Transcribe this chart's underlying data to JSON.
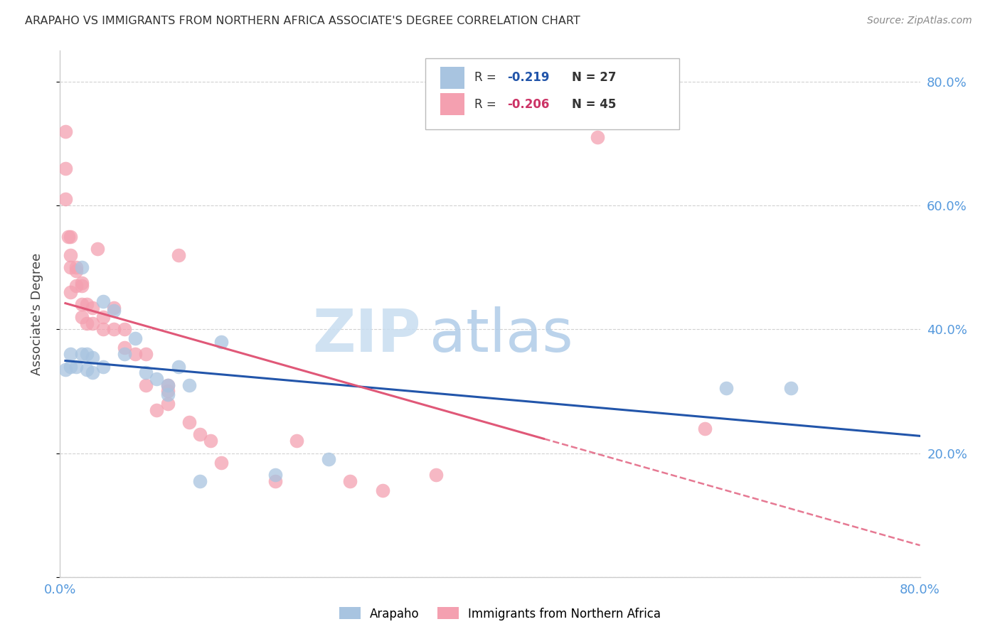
{
  "title": "ARAPAHO VS IMMIGRANTS FROM NORTHERN AFRICA ASSOCIATE'S DEGREE CORRELATION CHART",
  "source": "Source: ZipAtlas.com",
  "ylabel": "Associate's Degree",
  "xlim": [
    0.0,
    0.8
  ],
  "ylim": [
    0.0,
    0.85
  ],
  "yticks": [
    0.0,
    0.2,
    0.4,
    0.6,
    0.8
  ],
  "xticks": [
    0.0,
    0.1,
    0.2,
    0.3,
    0.4,
    0.5,
    0.6,
    0.7,
    0.8
  ],
  "blue_color": "#a8c4e0",
  "pink_color": "#f4a0b0",
  "line_blue": "#2255aa",
  "line_pink": "#e05878",
  "arapaho_x": [
    0.005,
    0.01,
    0.01,
    0.015,
    0.02,
    0.02,
    0.025,
    0.025,
    0.03,
    0.03,
    0.04,
    0.04,
    0.05,
    0.06,
    0.07,
    0.08,
    0.09,
    0.1,
    0.1,
    0.11,
    0.12,
    0.13,
    0.15,
    0.2,
    0.25,
    0.62,
    0.68
  ],
  "arapaho_y": [
    0.335,
    0.34,
    0.36,
    0.34,
    0.5,
    0.36,
    0.335,
    0.36,
    0.355,
    0.33,
    0.445,
    0.34,
    0.43,
    0.36,
    0.385,
    0.33,
    0.32,
    0.31,
    0.295,
    0.34,
    0.31,
    0.155,
    0.38,
    0.165,
    0.19,
    0.305,
    0.305
  ],
  "immigrants_x": [
    0.005,
    0.005,
    0.005,
    0.008,
    0.01,
    0.01,
    0.01,
    0.01,
    0.015,
    0.015,
    0.015,
    0.02,
    0.02,
    0.02,
    0.02,
    0.025,
    0.025,
    0.03,
    0.03,
    0.035,
    0.04,
    0.04,
    0.05,
    0.05,
    0.06,
    0.06,
    0.07,
    0.08,
    0.08,
    0.09,
    0.1,
    0.1,
    0.1,
    0.11,
    0.12,
    0.13,
    0.14,
    0.15,
    0.2,
    0.22,
    0.27,
    0.3,
    0.35,
    0.5,
    0.6
  ],
  "immigrants_y": [
    0.72,
    0.66,
    0.61,
    0.55,
    0.55,
    0.52,
    0.5,
    0.46,
    0.5,
    0.495,
    0.47,
    0.475,
    0.47,
    0.44,
    0.42,
    0.44,
    0.41,
    0.435,
    0.41,
    0.53,
    0.42,
    0.4,
    0.435,
    0.4,
    0.4,
    0.37,
    0.36,
    0.36,
    0.31,
    0.27,
    0.31,
    0.3,
    0.28,
    0.52,
    0.25,
    0.23,
    0.22,
    0.185,
    0.155,
    0.22,
    0.155,
    0.14,
    0.165,
    0.71,
    0.24
  ],
  "pink_line_solid_end": 0.45,
  "blue_line_x_start": 0.005,
  "blue_line_x_end": 0.8
}
